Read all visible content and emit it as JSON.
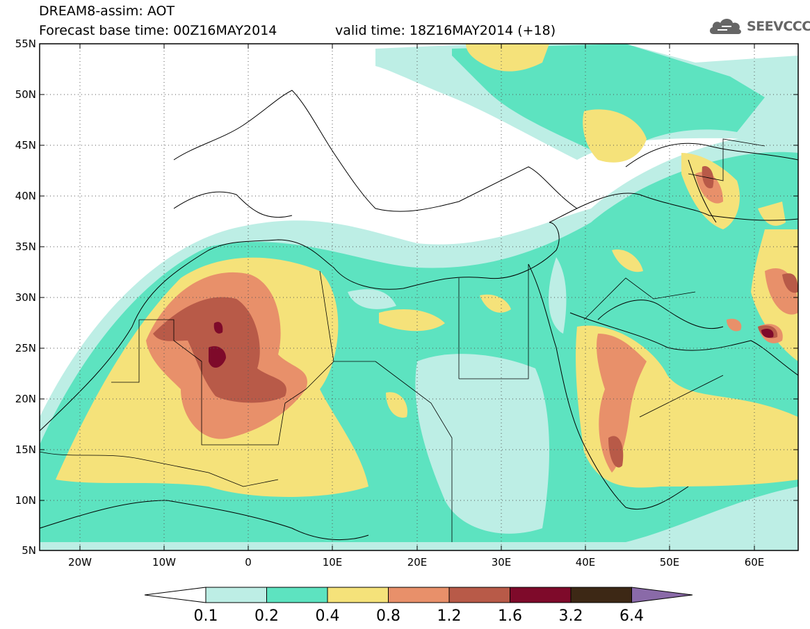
{
  "header": {
    "line1": "DREAM8-assim: AOT",
    "line2": "Forecast base time: 00Z16MAY2014",
    "valid_time": "valid time: 18Z16MAY2014 (+18)"
  },
  "logo": {
    "text": "SEEVCCC",
    "icon": "cloud-icon"
  },
  "map": {
    "lat_labels": [
      "55N",
      "50N",
      "45N",
      "40N",
      "35N",
      "30N",
      "25N",
      "20N",
      "15N",
      "10N",
      "5N"
    ],
    "lon_labels": [
      "20W",
      "10W",
      "0",
      "10E",
      "20E",
      "30E",
      "40E",
      "50E",
      "60E"
    ],
    "lat_range": [
      5,
      55
    ],
    "lon_range": [
      -25,
      65
    ],
    "grid": "dotted"
  },
  "colorbar": {
    "labels": [
      "0.1",
      "0.2",
      "0.4",
      "0.8",
      "1.2",
      "1.6",
      "3.2",
      "6.4"
    ],
    "colors": [
      "#ffffff",
      "#bdeee5",
      "#5de3c0",
      "#f5e27a",
      "#e8906a",
      "#b85a48",
      "#7e0a2a",
      "#3d2815",
      "#8a6aa8"
    ]
  },
  "legend": {
    "class_colors": [
      "#bdeee5",
      "#5de3c0",
      "#f5e27a",
      "#e8906a",
      "#b85a48",
      "#7e0a2a"
    ]
  }
}
